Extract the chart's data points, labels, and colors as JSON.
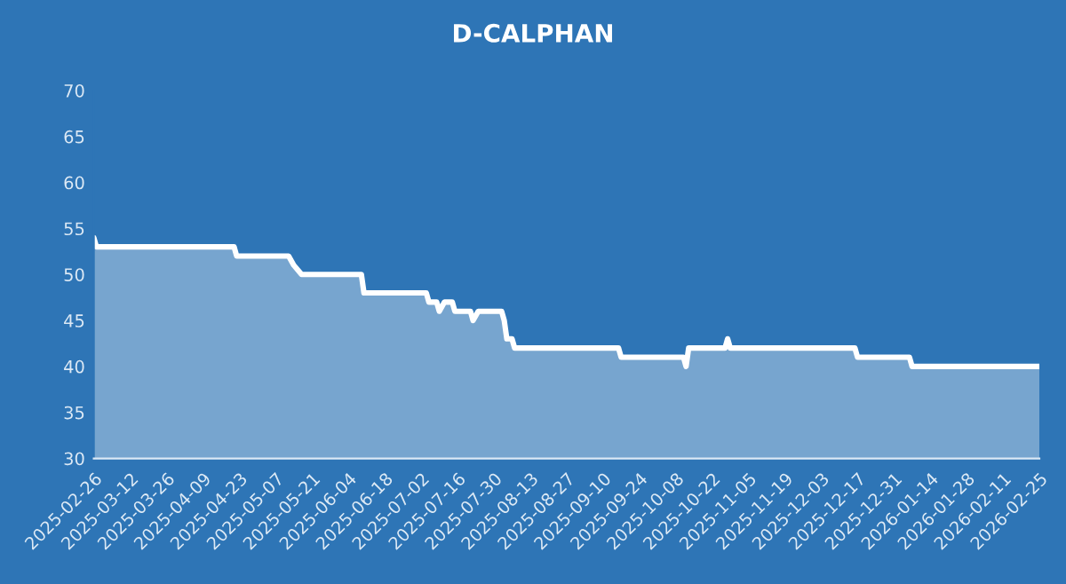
{
  "chart_data": {
    "type": "area",
    "title": "D-CALPHAN",
    "x": [
      "2025-02-26",
      "2025-02-27",
      "2025-04-21",
      "2025-04-22",
      "2025-05-12",
      "2025-05-14",
      "2025-05-17",
      "2025-06-09",
      "2025-06-10",
      "2025-07-04",
      "2025-07-05",
      "2025-07-08",
      "2025-07-09",
      "2025-07-11",
      "2025-07-14",
      "2025-07-15",
      "2025-07-21",
      "2025-07-22",
      "2025-07-24",
      "2025-08-02",
      "2025-08-03",
      "2025-08-04",
      "2025-08-06",
      "2025-08-07",
      "2025-09-16",
      "2025-09-17",
      "2025-10-11",
      "2025-10-12",
      "2025-10-13",
      "2025-10-27",
      "2025-10-28",
      "2025-10-29",
      "2025-12-16",
      "2025-12-17",
      "2026-01-06",
      "2026-01-07",
      "2026-02-25"
    ],
    "series": [
      {
        "color": "#ffffff",
        "values": [
          54,
          53,
          53,
          52,
          52,
          51,
          50,
          50,
          48,
          48,
          47,
          47,
          46,
          47,
          47,
          46,
          46,
          45,
          46,
          46,
          45,
          43,
          43,
          42,
          42,
          41,
          41,
          40,
          42,
          42,
          43,
          42,
          42,
          41,
          41,
          40,
          40
        ]
      }
    ],
    "xlim": [
      "2025-02-26",
      "2026-02-25"
    ],
    "xticks": [
      "2025-02-26",
      "2025-03-12",
      "2025-03-26",
      "2025-04-09",
      "2025-04-23",
      "2025-05-07",
      "2025-05-21",
      "2025-06-04",
      "2025-06-18",
      "2025-07-02",
      "2025-07-16",
      "2025-07-30",
      "2025-08-13",
      "2025-08-27",
      "2025-09-10",
      "2025-09-24",
      "2025-10-08",
      "2025-10-22",
      "2025-11-05",
      "2025-11-19",
      "2025-12-03",
      "2025-12-17",
      "2025-12-31",
      "2026-01-14",
      "2026-01-28",
      "2026-02-11",
      "2026-02-25"
    ],
    "ylim": [
      30,
      70
    ],
    "yticks": [
      30,
      35,
      40,
      45,
      50,
      55,
      60,
      65,
      70
    ],
    "grid": false,
    "legend": false,
    "line_style": "solid",
    "marker": "none"
  }
}
